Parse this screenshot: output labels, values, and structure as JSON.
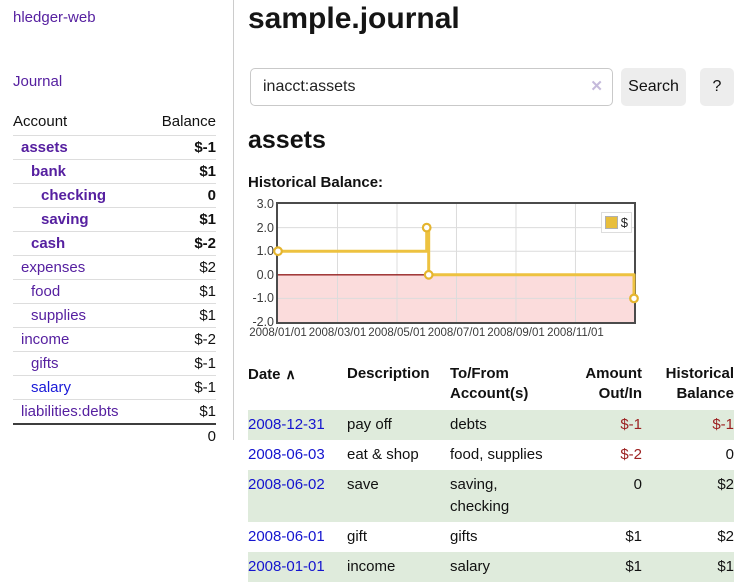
{
  "app": {
    "title": "hledger-web"
  },
  "sidebar": {
    "journal_label": "Journal",
    "accounts_table": {
      "account_header": "Account",
      "balance_header": "Balance",
      "rows": [
        {
          "name": "assets",
          "balance": "$-1",
          "depth": 0,
          "bold": true,
          "balance_style": "negStrong"
        },
        {
          "name": "bank",
          "balance": "$1",
          "depth": 1,
          "bold": true,
          "balance_style": "plain"
        },
        {
          "name": "checking",
          "balance": "0",
          "depth": 2,
          "bold": true,
          "balance_style": "plain"
        },
        {
          "name": "saving",
          "balance": "$1",
          "depth": 2,
          "bold": true,
          "balance_style": "plain"
        },
        {
          "name": "cash",
          "balance": "$-2",
          "depth": 1,
          "bold": true,
          "balance_style": "negStrong"
        },
        {
          "name": "expenses",
          "balance": "$2",
          "depth": 0,
          "bold": false,
          "balance_style": "plain"
        },
        {
          "name": "food",
          "balance": "$1",
          "depth": 1,
          "bold": false,
          "balance_style": "plain"
        },
        {
          "name": "supplies",
          "balance": "$1",
          "depth": 1,
          "bold": false,
          "balance_style": "plain"
        },
        {
          "name": "income",
          "balance": "$-2",
          "depth": 0,
          "bold": false,
          "balance_style": "negMuted"
        },
        {
          "name": "gifts",
          "balance": "$-1",
          "depth": 1,
          "bold": false,
          "balance_style": "negMuted"
        },
        {
          "name": "salary",
          "balance": "$-1",
          "depth": 1,
          "bold": false,
          "balance_style": "negMuted",
          "link_variant": "blue"
        },
        {
          "name": "liabilities:debts",
          "balance": "$1",
          "depth": 0,
          "bold": false,
          "balance_style": "plain"
        }
      ],
      "total": "0"
    }
  },
  "header": {
    "title": "sample.journal"
  },
  "search": {
    "value": "inacct:assets",
    "clear_icon": "✕",
    "search_label": "Search",
    "help_label": "?"
  },
  "account_page": {
    "title": "assets",
    "chart_label": "Historical Balance:"
  },
  "chart_data": {
    "type": "line",
    "step": true,
    "title": "Historical Balance",
    "series": [
      {
        "name": "$",
        "color": "#EDC240",
        "points": [
          [
            "2008/01/01",
            1
          ],
          [
            "2008/06/01",
            2
          ],
          [
            "2008/06/03",
            0
          ],
          [
            "2008/12/31",
            -1
          ]
        ]
      }
    ],
    "xlim": [
      "2008/01/01",
      "2008/12/31"
    ],
    "ylim": [
      -2.0,
      3.0
    ],
    "yticks": [
      3.0,
      2.0,
      1.0,
      0.0,
      -1.0,
      -2.0
    ],
    "xticks": [
      "2008/01/01",
      "2008/03/01",
      "2008/05/01",
      "2008/07/01",
      "2008/09/01",
      "2008/11/01"
    ],
    "grid": true,
    "legend_position": "top-right",
    "negative_fill": "#fbdcdc",
    "zero_line_color": "#941f1f",
    "gridline_color": "#dcdcdc",
    "marker_fill": "#ffffff",
    "marker_stroke": "#e5b52f"
  },
  "register": {
    "sort_icon": "∧",
    "headers": [
      {
        "label": "Date",
        "sortable": true
      },
      {
        "label": "Description"
      },
      {
        "label": "To/From Account(s)"
      },
      {
        "label": "Amount Out/In",
        "align": "right"
      },
      {
        "label": "Historical Balance",
        "align": "right"
      }
    ],
    "rows": [
      {
        "date": "2008-12-31",
        "description": "pay off",
        "accounts": "debts",
        "amount": "$-1",
        "balance": "$-1",
        "amount_negative": true,
        "balance_negative": true
      },
      {
        "date": "2008-06-03",
        "description": "eat & shop",
        "accounts": "food, supplies",
        "amount": "$-2",
        "balance": "0",
        "amount_negative": true,
        "balance_negative": false
      },
      {
        "date": "2008-06-02",
        "description": "save",
        "accounts": "saving, checking",
        "amount": "0",
        "balance": "$2",
        "amount_negative": false,
        "balance_negative": false
      },
      {
        "date": "2008-06-01",
        "description": "gift",
        "accounts": "gifts",
        "amount": "$1",
        "balance": "$2",
        "amount_negative": false,
        "balance_negative": false
      },
      {
        "date": "2008-01-01",
        "description": "income",
        "accounts": "salary",
        "amount": "$1",
        "balance": "$1",
        "amount_negative": false,
        "balance_negative": false
      }
    ]
  }
}
